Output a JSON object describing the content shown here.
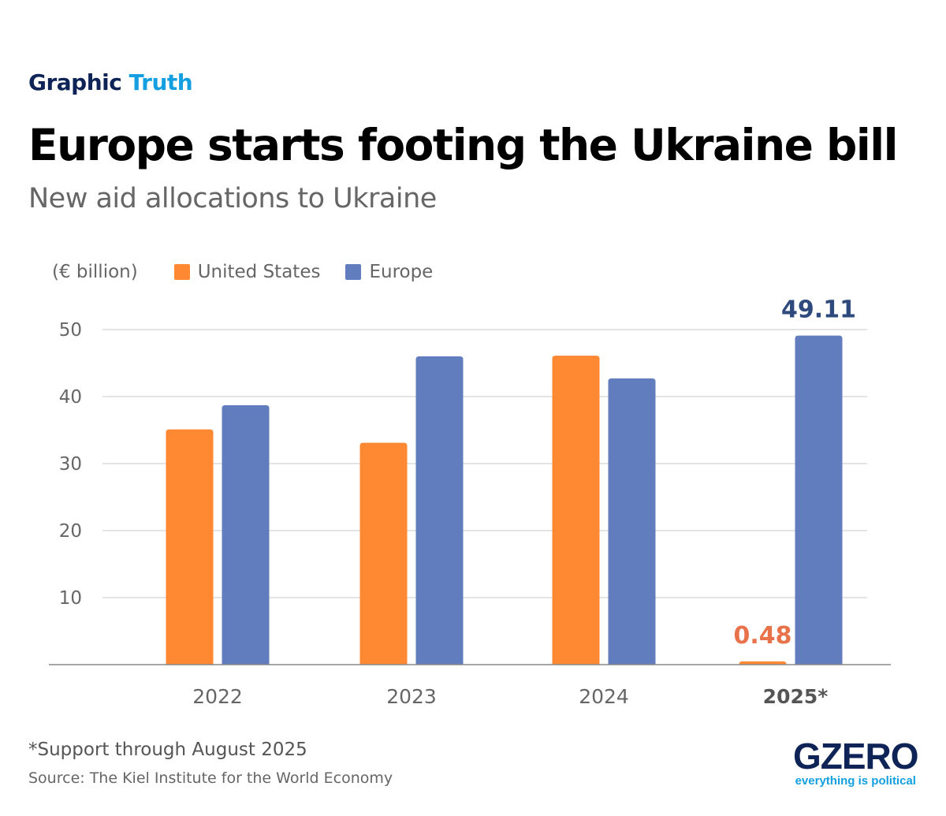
{
  "header": {
    "kicker_a": "Graphic",
    "kicker_b": "Truth",
    "title": "Europe starts footing the Ukraine bill",
    "subtitle": "New aid allocations to Ukraine"
  },
  "chart_data": {
    "type": "bar",
    "ylabel": "(€ billion)",
    "categories": [
      "2022",
      "2023",
      "2024",
      "2025*"
    ],
    "series": [
      {
        "name": "United States",
        "color": "#FF8833",
        "values": [
          35.1,
          33.1,
          46.1,
          0.48
        ]
      },
      {
        "name": "Europe",
        "color": "#617DBE",
        "values": [
          38.7,
          46.0,
          42.7,
          49.11
        ]
      }
    ],
    "data_labels": [
      {
        "series": "United States",
        "category": "2025*",
        "text": "0.48",
        "color": "#E8734A"
      },
      {
        "series": "Europe",
        "category": "2025*",
        "text": "49.11",
        "color": "#2E4A7D"
      }
    ],
    "yticks": [
      10,
      20,
      30,
      40,
      50
    ],
    "ylim": [
      0,
      50
    ],
    "grid": true,
    "legend": "top-left"
  },
  "footer": {
    "note": "*Support through August 2025",
    "source": "Source: The Kiel Institute for the World Economy"
  },
  "logo": {
    "name": "GZERO",
    "tagline": "everything is political"
  }
}
